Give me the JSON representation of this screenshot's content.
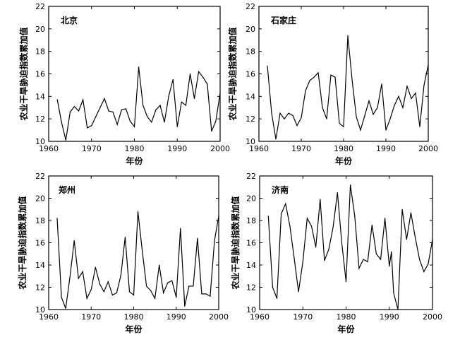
{
  "chart_data": [
    {
      "type": "line",
      "title": "北京",
      "xlabel": "年份",
      "ylabel": "农业干旱胁迫指数累加值",
      "xlim": [
        1960,
        2000
      ],
      "ylim": [
        10,
        22
      ],
      "xticks": [
        "1960",
        "1970",
        "1980",
        "1990",
        "2000"
      ],
      "yticks": [
        "10",
        "12",
        "14",
        "16",
        "18",
        "20",
        "22"
      ],
      "x": [
        1962,
        1963,
        1964,
        1965,
        1966,
        1967,
        1968,
        1969,
        1970,
        1971,
        1972,
        1973,
        1974,
        1975,
        1976,
        1977,
        1978,
        1979,
        1980,
        1981,
        1982,
        1983,
        1984,
        1985,
        1986,
        1987,
        1988,
        1989,
        1990,
        1991,
        1992,
        1993,
        1994,
        1995,
        1996,
        1997,
        1998,
        1999,
        2000
      ],
      "values": [
        13.7,
        11.7,
        10.1,
        12.6,
        13.1,
        12.7,
        13.7,
        11.2,
        11.4,
        12.2,
        13.0,
        13.8,
        12.7,
        12.6,
        11.5,
        12.8,
        12.9,
        11.8,
        11.3,
        16.6,
        13.2,
        12.2,
        11.7,
        12.8,
        13.2,
        11.7,
        14.0,
        15.5,
        11.3,
        13.5,
        13.2,
        16.0,
        13.8,
        16.2,
        15.7,
        15.1,
        10.9,
        11.8,
        14.3
      ]
    },
    {
      "type": "line",
      "title": "石家庄",
      "xlabel": "年份",
      "ylabel": "农业干旱胁迫指数累加值",
      "xlim": [
        1960,
        2000
      ],
      "ylim": [
        10,
        22
      ],
      "xticks": [
        "1960",
        "1970",
        "1980",
        "1990",
        "2000"
      ],
      "yticks": [
        "10",
        "12",
        "14",
        "16",
        "18",
        "20",
        "22"
      ],
      "x": [
        1962,
        1963,
        1964,
        1965,
        1966,
        1967,
        1968,
        1969,
        1970,
        1971,
        1972,
        1973,
        1974,
        1975,
        1976,
        1977,
        1978,
        1979,
        1980,
        1981,
        1982,
        1983,
        1984,
        1985,
        1986,
        1987,
        1988,
        1989,
        1990,
        1991,
        1992,
        1993,
        1994,
        1995,
        1996,
        1997,
        1998,
        1999,
        2000
      ],
      "values": [
        16.7,
        12.5,
        10.2,
        12.5,
        12.0,
        12.5,
        12.3,
        11.4,
        12.1,
        14.5,
        15.4,
        15.7,
        16.1,
        13.0,
        12.0,
        15.9,
        15.7,
        11.6,
        11.3,
        19.4,
        15.5,
        12.2,
        11.0,
        12.3,
        13.6,
        12.4,
        13.0,
        15.1,
        11.0,
        12.0,
        13.2,
        14.0,
        13.0,
        14.9,
        13.8,
        14.3,
        11.3,
        15.0,
        16.8
      ]
    },
    {
      "type": "line",
      "title": "郑州",
      "xlabel": "年份",
      "ylabel": "农业干旱胁迫指数累加值",
      "xlim": [
        1960,
        2000
      ],
      "ylim": [
        10,
        22
      ],
      "xticks": [
        "1960",
        "1970",
        "1980",
        "1990",
        "2000"
      ],
      "yticks": [
        "10",
        "12",
        "14",
        "16",
        "18",
        "20",
        "22"
      ],
      "x": [
        1962,
        1963,
        1964,
        1965,
        1966,
        1967,
        1968,
        1969,
        1970,
        1971,
        1972,
        1973,
        1974,
        1975,
        1976,
        1977,
        1978,
        1979,
        1980,
        1981,
        1982,
        1983,
        1984,
        1985,
        1986,
        1987,
        1988,
        1989,
        1990,
        1991,
        1992,
        1993,
        1994,
        1995,
        1996,
        1997,
        1998,
        1999,
        2000
      ],
      "values": [
        18.2,
        11.1,
        10.1,
        12.9,
        16.2,
        12.8,
        13.4,
        11.0,
        11.8,
        13.8,
        12.3,
        11.6,
        12.5,
        11.3,
        11.5,
        13.1,
        16.5,
        11.6,
        11.3,
        18.8,
        15.3,
        12.1,
        11.7,
        11.0,
        14.0,
        11.5,
        12.4,
        12.6,
        11.1,
        17.3,
        10.3,
        12.1,
        12.1,
        16.4,
        11.4,
        11.4,
        11.2,
        16.2,
        18.4
      ]
    },
    {
      "type": "line",
      "title": "济南",
      "xlabel": "年份",
      "ylabel": "农业干旱胁迫指数累加值",
      "xlim": [
        1960,
        2000
      ],
      "ylim": [
        10,
        22
      ],
      "xticks": [
        "1960",
        "1970",
        "1980",
        "1990",
        "2000"
      ],
      "yticks": [
        "10",
        "12",
        "14",
        "16",
        "18",
        "20",
        "22"
      ],
      "x": [
        1962,
        1963,
        1964,
        1965,
        1966,
        1967,
        1968,
        1969,
        1970,
        1971,
        1972,
        1973,
        1974,
        1975,
        1976,
        1977,
        1978,
        1979,
        1980,
        1981,
        1982,
        1983,
        1984,
        1985,
        1986,
        1987,
        1988,
        1989,
        1990,
        1990.5,
        1991,
        1992,
        1993,
        1994,
        1995,
        1996,
        1997,
        1998,
        1999,
        2000
      ],
      "values": [
        18.4,
        12.0,
        11.0,
        18.6,
        19.5,
        17.5,
        14.6,
        11.6,
        14.3,
        18.2,
        17.5,
        15.6,
        19.9,
        14.4,
        15.4,
        17.4,
        20.5,
        16.0,
        12.5,
        21.2,
        18.4,
        13.7,
        14.5,
        14.3,
        17.6,
        15.0,
        14.5,
        18.2,
        13.9,
        15.2,
        11.5,
        10.0,
        19.0,
        16.3,
        18.7,
        16.5,
        14.5,
        13.4,
        14.1,
        16.3
      ]
    }
  ]
}
